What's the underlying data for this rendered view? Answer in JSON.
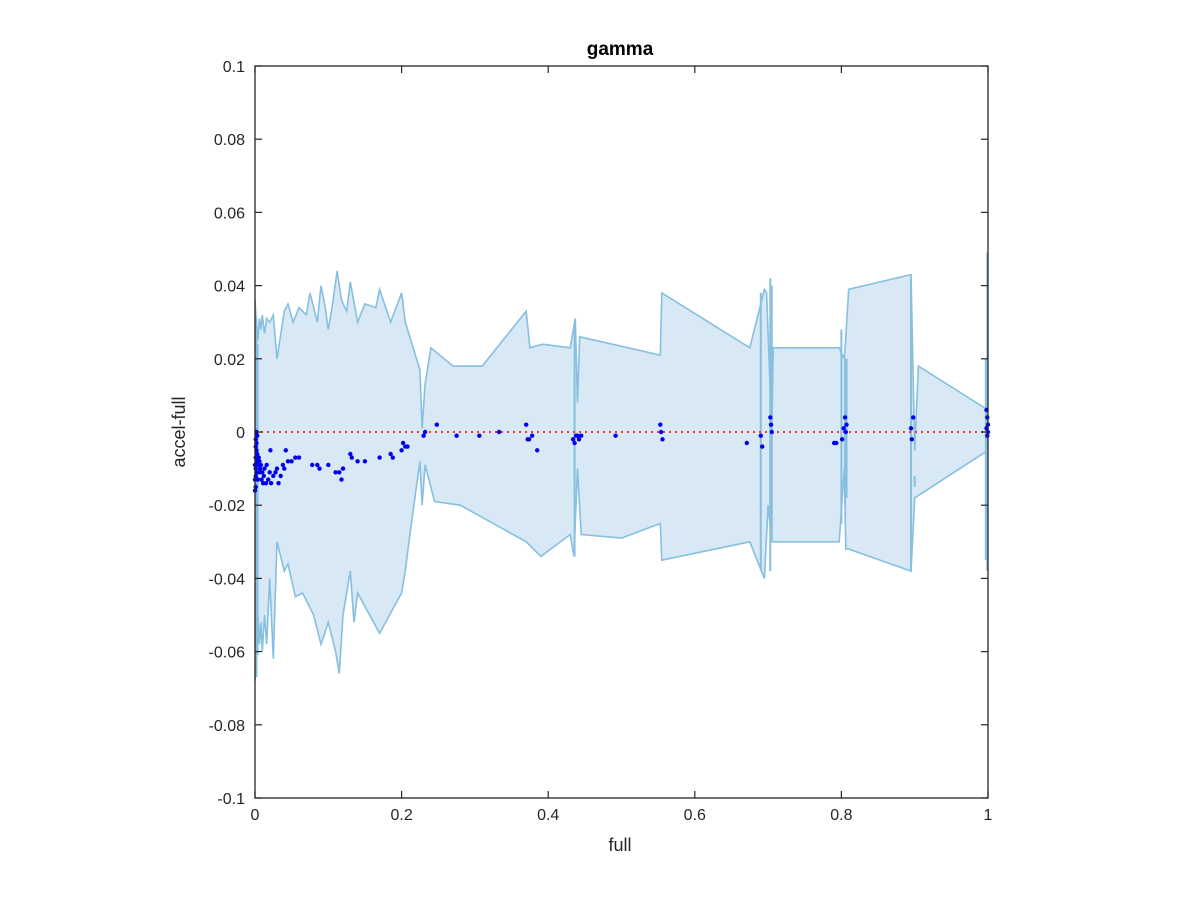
{
  "chart_data": {
    "type": "scatter",
    "title": "gamma",
    "xlabel": "full",
    "ylabel": "accel-full",
    "xlim": [
      0,
      1
    ],
    "ylim": [
      -0.1,
      0.1
    ],
    "x_ticks": [
      0,
      0.2,
      0.4,
      0.6,
      0.8,
      1
    ],
    "x_tick_labels": [
      "0",
      "0.2",
      "0.4",
      "0.6",
      "0.8",
      "1"
    ],
    "y_ticks": [
      0.1,
      0.08,
      0.06,
      0.04,
      0.02,
      0,
      -0.02,
      -0.04,
      -0.06,
      -0.08,
      -0.1
    ],
    "y_tick_labels": [
      "0.1",
      "0.08",
      "0.06",
      "0.04",
      "0.02",
      "0",
      "-0.02",
      "-0.04",
      "-0.06",
      "-0.08",
      "-0.1"
    ],
    "grid": false,
    "legend": "none",
    "colors": {
      "band_fill": "#d9e8f5",
      "band_edge": "#86bfe0",
      "points": "#0000ee",
      "zero_line": "#ff3333",
      "axes": "#262626"
    },
    "reference_line": {
      "y": 0,
      "style": "dotted"
    },
    "band": {
      "upper": [
        [
          0,
          0.036
        ],
        [
          0.002,
          0.03
        ],
        [
          0.004,
          0.025
        ],
        [
          0.006,
          0.031
        ],
        [
          0.008,
          0.028
        ],
        [
          0.01,
          0.032
        ],
        [
          0.013,
          0.027
        ],
        [
          0.016,
          0.031
        ],
        [
          0.02,
          0.03
        ],
        [
          0.025,
          0.032
        ],
        [
          0.03,
          0.02
        ],
        [
          0.04,
          0.033
        ],
        [
          0.045,
          0.035
        ],
        [
          0.052,
          0.03
        ],
        [
          0.06,
          0.034
        ],
        [
          0.07,
          0.032
        ],
        [
          0.075,
          0.038
        ],
        [
          0.085,
          0.03
        ],
        [
          0.09,
          0.04
        ],
        [
          0.095,
          0.035
        ],
        [
          0.1,
          0.028
        ],
        [
          0.105,
          0.034
        ],
        [
          0.112,
          0.044
        ],
        [
          0.118,
          0.036
        ],
        [
          0.125,
          0.033
        ],
        [
          0.13,
          0.041
        ],
        [
          0.14,
          0.03
        ],
        [
          0.15,
          0.035
        ],
        [
          0.165,
          0.034
        ],
        [
          0.17,
          0.039
        ],
        [
          0.185,
          0.03
        ],
        [
          0.2,
          0.038
        ],
        [
          0.205,
          0.03
        ],
        [
          0.225,
          0.017
        ],
        [
          0.228,
          0.001
        ],
        [
          0.232,
          0.013
        ],
        [
          0.24,
          0.023
        ],
        [
          0.27,
          0.018
        ],
        [
          0.31,
          0.018
        ],
        [
          0.37,
          0.033
        ],
        [
          0.375,
          0.023
        ],
        [
          0.392,
          0.024
        ],
        [
          0.43,
          0.023
        ],
        [
          0.437,
          0.031
        ],
        [
          0.44,
          0.008
        ],
        [
          0.443,
          0.026
        ],
        [
          0.553,
          0.021
        ],
        [
          0.555,
          0.038
        ],
        [
          0.675,
          0.023
        ],
        [
          0.695,
          0.039
        ],
        [
          0.698,
          0.038
        ],
        [
          0.705,
          0.0
        ],
        [
          0.707,
          0.023
        ],
        [
          0.797,
          0.023
        ],
        [
          0.804,
          0.02
        ],
        [
          0.806,
          0.026
        ],
        [
          0.81,
          0.039
        ],
        [
          0.895,
          0.043
        ],
        [
          0.9,
          -0.005
        ],
        [
          0.905,
          0.018
        ],
        [
          1.0,
          0.006
        ]
      ],
      "lower": [
        [
          0,
          -0.068
        ],
        [
          0.002,
          -0.048
        ],
        [
          0.004,
          -0.05
        ],
        [
          0.006,
          -0.058
        ],
        [
          0.008,
          -0.052
        ],
        [
          0.01,
          -0.06
        ],
        [
          0.013,
          -0.05
        ],
        [
          0.016,
          -0.058
        ],
        [
          0.02,
          -0.04
        ],
        [
          0.025,
          -0.062
        ],
        [
          0.03,
          -0.03
        ],
        [
          0.04,
          -0.038
        ],
        [
          0.045,
          -0.036
        ],
        [
          0.055,
          -0.045
        ],
        [
          0.065,
          -0.044
        ],
        [
          0.08,
          -0.05
        ],
        [
          0.09,
          -0.058
        ],
        [
          0.1,
          -0.052
        ],
        [
          0.11,
          -0.06
        ],
        [
          0.115,
          -0.066
        ],
        [
          0.12,
          -0.05
        ],
        [
          0.13,
          -0.038
        ],
        [
          0.135,
          -0.052
        ],
        [
          0.14,
          -0.044
        ],
        [
          0.17,
          -0.055
        ],
        [
          0.2,
          -0.044
        ],
        [
          0.205,
          -0.038
        ],
        [
          0.21,
          -0.03
        ],
        [
          0.225,
          -0.008
        ],
        [
          0.228,
          -0.02
        ],
        [
          0.232,
          -0.009
        ],
        [
          0.245,
          -0.019
        ],
        [
          0.28,
          -0.02
        ],
        [
          0.37,
          -0.03
        ],
        [
          0.39,
          -0.034
        ],
        [
          0.43,
          -0.028
        ],
        [
          0.435,
          -0.034
        ],
        [
          0.44,
          -0.01
        ],
        [
          0.445,
          -0.028
        ],
        [
          0.5,
          -0.029
        ],
        [
          0.553,
          -0.025
        ],
        [
          0.555,
          -0.035
        ],
        [
          0.675,
          -0.03
        ],
        [
          0.695,
          -0.04
        ],
        [
          0.7,
          -0.02
        ],
        [
          0.705,
          -0.03
        ],
        [
          0.797,
          -0.03
        ],
        [
          0.804,
          -0.01
        ],
        [
          0.806,
          -0.032
        ],
        [
          0.81,
          -0.032
        ],
        [
          0.895,
          -0.038
        ],
        [
          0.9,
          -0.018
        ],
        [
          1.0,
          -0.005
        ]
      ],
      "spikes": [
        [
          0.002,
          0.031,
          -0.067
        ],
        [
          0.0035,
          0.024,
          -0.061
        ],
        [
          0.436,
          0.03,
          -0.034
        ],
        [
          0.69,
          0.038,
          -0.038
        ],
        [
          0.703,
          0.042,
          -0.038
        ],
        [
          0.705,
          0.04,
          -0.03
        ],
        [
          0.8,
          0.028,
          -0.025
        ],
        [
          0.805,
          0.02,
          -0.02
        ],
        [
          0.807,
          0.02,
          -0.018
        ],
        [
          0.895,
          0.042,
          -0.038
        ],
        [
          0.9,
          -0.015,
          -0.012
        ],
        [
          0.997,
          0.02,
          -0.035
        ],
        [
          0.999,
          0.049,
          -0.038
        ]
      ]
    },
    "points": [
      [
        0,
        -0.016
      ],
      [
        0.001,
        -0.015
      ],
      [
        0.0,
        -0.013
      ],
      [
        0.001,
        -0.012
      ],
      [
        0.002,
        -0.011
      ],
      [
        0.001,
        -0.01
      ],
      [
        0.0,
        -0.009
      ],
      [
        0.002,
        -0.008
      ],
      [
        0.001,
        -0.007
      ],
      [
        0.003,
        -0.006
      ],
      [
        0.002,
        -0.005
      ],
      [
        0.001,
        -0.004
      ],
      [
        0.002,
        -0.003
      ],
      [
        0.001,
        -0.002
      ],
      [
        0.003,
        -0.001
      ],
      [
        0.002,
        0.0
      ],
      [
        0.004,
        -0.013
      ],
      [
        0.004,
        -0.009
      ],
      [
        0.005,
        -0.007
      ],
      [
        0.006,
        -0.008
      ],
      [
        0.006,
        -0.011
      ],
      [
        0.007,
        -0.01
      ],
      [
        0.008,
        -0.009
      ],
      [
        0.009,
        -0.013
      ],
      [
        0.01,
        -0.011
      ],
      [
        0.011,
        -0.014
      ],
      [
        0.012,
        -0.012
      ],
      [
        0.013,
        -0.01
      ],
      [
        0.015,
        -0.014
      ],
      [
        0.016,
        -0.009
      ],
      [
        0.018,
        -0.013
      ],
      [
        0.02,
        -0.011
      ],
      [
        0.021,
        -0.005
      ],
      [
        0.022,
        -0.014
      ],
      [
        0.025,
        -0.012
      ],
      [
        0.028,
        -0.011
      ],
      [
        0.03,
        -0.01
      ],
      [
        0.032,
        -0.014
      ],
      [
        0.035,
        -0.012
      ],
      [
        0.038,
        -0.009
      ],
      [
        0.04,
        -0.01
      ],
      [
        0.042,
        -0.005
      ],
      [
        0.045,
        -0.008
      ],
      [
        0.05,
        -0.008
      ],
      [
        0.055,
        -0.007
      ],
      [
        0.06,
        -0.007
      ],
      [
        0.078,
        -0.009
      ],
      [
        0.085,
        -0.009
      ],
      [
        0.088,
        -0.01
      ],
      [
        0.1,
        -0.009
      ],
      [
        0.11,
        -0.011
      ],
      [
        0.115,
        -0.011
      ],
      [
        0.118,
        -0.013
      ],
      [
        0.12,
        -0.01
      ],
      [
        0.13,
        -0.006
      ],
      [
        0.132,
        -0.007
      ],
      [
        0.14,
        -0.008
      ],
      [
        0.15,
        -0.008
      ],
      [
        0.17,
        -0.007
      ],
      [
        0.185,
        -0.006
      ],
      [
        0.188,
        -0.007
      ],
      [
        0.2,
        -0.005
      ],
      [
        0.202,
        -0.003
      ],
      [
        0.205,
        -0.004
      ],
      [
        0.208,
        -0.004
      ],
      [
        0.23,
        -0.001
      ],
      [
        0.232,
        0.0
      ],
      [
        0.248,
        0.002
      ],
      [
        0.275,
        -0.001
      ],
      [
        0.306,
        -0.001
      ],
      [
        0.333,
        0.0
      ],
      [
        0.37,
        0.002
      ],
      [
        0.372,
        -0.002
      ],
      [
        0.374,
        -0.002
      ],
      [
        0.378,
        -0.001
      ],
      [
        0.385,
        -0.005
      ],
      [
        0.434,
        -0.002
      ],
      [
        0.436,
        -0.003
      ],
      [
        0.438,
        -0.001
      ],
      [
        0.44,
        -0.001
      ],
      [
        0.442,
        -0.002
      ],
      [
        0.445,
        -0.001
      ],
      [
        0.492,
        -0.001
      ],
      [
        0.553,
        0.002
      ],
      [
        0.554,
        0.0
      ],
      [
        0.556,
        -0.002
      ],
      [
        0.671,
        -0.003
      ],
      [
        0.69,
        -0.001
      ],
      [
        0.692,
        -0.004
      ],
      [
        0.703,
        0.004
      ],
      [
        0.704,
        0.002
      ],
      [
        0.705,
        0.0
      ],
      [
        0.79,
        -0.003
      ],
      [
        0.793,
        -0.003
      ],
      [
        0.801,
        -0.002
      ],
      [
        0.803,
        0.001
      ],
      [
        0.805,
        0.004
      ],
      [
        0.806,
        0.0
      ],
      [
        0.807,
        0.002
      ],
      [
        0.895,
        0.001
      ],
      [
        0.896,
        -0.002
      ],
      [
        0.898,
        0.004
      ],
      [
        0.998,
        0.006
      ],
      [
        0.999,
        0.004
      ],
      [
        1.0,
        0.002
      ],
      [
        1.0,
        0.0
      ],
      [
        0.999,
        -0.001
      ],
      [
        0.998,
        0.001
      ]
    ]
  }
}
